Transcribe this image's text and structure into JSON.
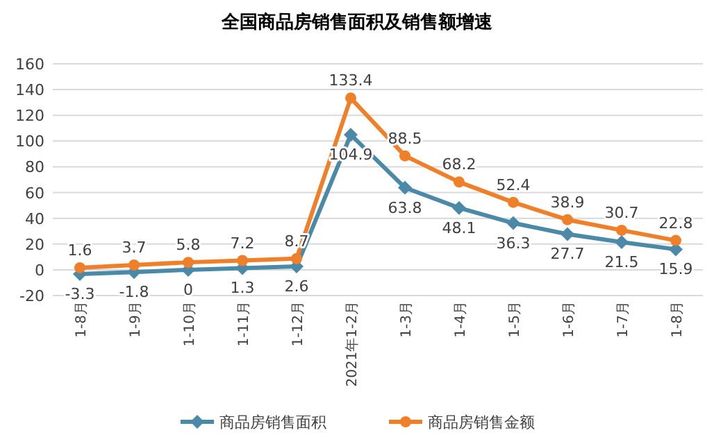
{
  "chart_data": {
    "type": "line",
    "title": "全国商品房销售面积及销售额增速",
    "categories": [
      "1-8月",
      "1-9月",
      "1-10月",
      "1-11月",
      "1-12月",
      "2021年1-2月",
      "1-3月",
      "1-4月",
      "1-5月",
      "1-6月",
      "1-7月",
      "1-8月"
    ],
    "series": [
      {
        "name": "商品房销售面积",
        "color": "#4a8aa8",
        "marker": "diamond",
        "values": [
          -3.3,
          -1.8,
          0,
          1.3,
          2.6,
          104.9,
          63.8,
          48.1,
          36.3,
          27.7,
          21.5,
          15.9
        ]
      },
      {
        "name": "商品房销售金额",
        "color": "#f07f2a",
        "marker": "circle",
        "values": [
          1.6,
          3.7,
          5.8,
          7.2,
          8.7,
          133.4,
          88.5,
          68.2,
          52.4,
          38.9,
          30.7,
          22.8
        ]
      }
    ],
    "ylim": [
      -20,
      160
    ],
    "yticks": [
      -20,
      0,
      20,
      40,
      60,
      80,
      100,
      120,
      140,
      160
    ],
    "grid": "y",
    "legend": "bottom",
    "data_labels": true,
    "line_style": "solid"
  }
}
